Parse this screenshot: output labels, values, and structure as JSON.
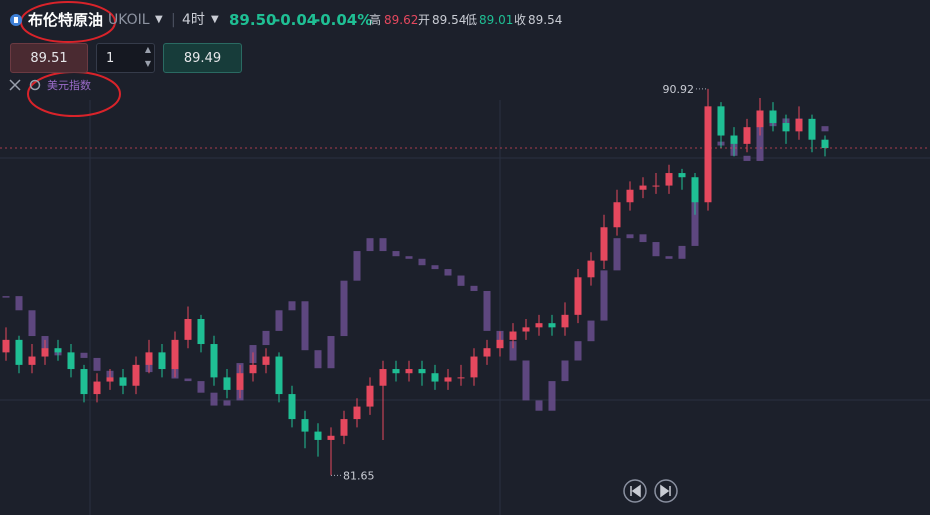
{
  "header": {
    "title": "布伦特原油",
    "symbol": "UKOIL",
    "period": "4时",
    "price": "89.50",
    "change": "-0.04",
    "change_pct": "-0.04%",
    "high_label": "高",
    "high": "89.62",
    "open_label": "开",
    "open": "89.54",
    "low_label": "低",
    "low": "89.01",
    "close_label": "收",
    "close": "89.54"
  },
  "order": {
    "sell": "89.51",
    "quantity": "1",
    "buy": "89.49"
  },
  "chart_data": {
    "type": "candlestick",
    "color_up": "#e5485e",
    "color_down": "#1fbf94",
    "ylim": [
      80.7,
      93.05
    ],
    "open": [
      84.6,
      84.9,
      84.3,
      84.5,
      84.7,
      84.6,
      84.2,
      83.6,
      83.9,
      84.0,
      83.8,
      84.3,
      84.6,
      84.2,
      84.9,
      85.4,
      84.8,
      84.0,
      83.7,
      84.1,
      84.3,
      84.5,
      83.6,
      83.0,
      82.7,
      82.5,
      82.6,
      83.0,
      83.3,
      83.8,
      84.2,
      84.1,
      84.2,
      84.1,
      83.9,
      84.0,
      84.0,
      84.5,
      84.7,
      84.9,
      85.1,
      85.2,
      85.3,
      85.2,
      85.5,
      86.4,
      86.8,
      87.6,
      88.2,
      88.5,
      88.6,
      88.6,
      88.9,
      88.8,
      88.2,
      90.5,
      89.8,
      89.6,
      90.0,
      90.4,
      90.1,
      89.9,
      90.2,
      89.7
    ],
    "high": [
      85.2,
      85.0,
      84.8,
      84.9,
      84.9,
      84.8,
      84.3,
      84.1,
      84.2,
      84.2,
      84.5,
      84.9,
      84.8,
      85.1,
      85.7,
      85.5,
      85.0,
      84.2,
      84.3,
      84.6,
      84.7,
      84.6,
      83.8,
      83.2,
      82.9,
      82.8,
      83.2,
      83.5,
      84.0,
      84.4,
      84.4,
      84.4,
      84.4,
      84.3,
      84.2,
      84.3,
      84.7,
      84.9,
      85.1,
      85.3,
      85.4,
      85.5,
      85.5,
      85.8,
      86.6,
      87.0,
      87.9,
      88.5,
      88.7,
      88.8,
      88.9,
      89.1,
      89.0,
      88.9,
      90.92,
      90.6,
      90.0,
      90.2,
      90.7,
      90.6,
      90.3,
      90.5,
      90.3,
      89.8
    ],
    "low": [
      84.4,
      84.1,
      84.1,
      84.3,
      84.4,
      84.0,
      83.4,
      83.4,
      83.7,
      83.6,
      83.6,
      84.1,
      84.0,
      84.0,
      84.7,
      84.6,
      83.8,
      83.5,
      83.5,
      83.9,
      84.1,
      83.4,
      82.8,
      82.3,
      82.1,
      81.65,
      82.4,
      82.8,
      83.1,
      82.5,
      83.9,
      83.9,
      83.8,
      83.7,
      83.7,
      83.8,
      83.8,
      84.3,
      84.5,
      84.7,
      84.9,
      85.0,
      85.0,
      85.0,
      85.3,
      86.2,
      86.6,
      87.4,
      88.0,
      88.3,
      88.4,
      88.4,
      88.5,
      87.9,
      88.0,
      89.5,
      89.3,
      89.4,
      89.8,
      89.9,
      89.6,
      89.7,
      89.4,
      89.3
    ],
    "close": [
      84.9,
      84.3,
      84.5,
      84.7,
      84.6,
      84.2,
      83.6,
      83.9,
      84.0,
      83.8,
      84.3,
      84.6,
      84.2,
      84.9,
      85.4,
      84.8,
      84.0,
      83.7,
      84.1,
      84.3,
      84.5,
      83.6,
      83.0,
      82.7,
      82.5,
      82.6,
      83.0,
      83.3,
      83.8,
      84.2,
      84.1,
      84.2,
      84.1,
      83.9,
      84.0,
      84.0,
      84.5,
      84.7,
      84.9,
      85.1,
      85.2,
      85.3,
      85.2,
      85.5,
      86.4,
      86.8,
      87.6,
      88.2,
      88.5,
      88.6,
      88.6,
      88.9,
      88.8,
      88.2,
      90.5,
      89.8,
      89.6,
      90.0,
      90.4,
      90.1,
      89.9,
      90.2,
      89.7,
      89.5
    ],
    "overlay": {
      "name": "美元指数",
      "color": "#6a4f8e",
      "y2lim": [
        102.7,
        106.7
      ],
      "values": [
        104.4,
        104.29,
        104.09,
        103.98,
        103.94,
        103.96,
        103.92,
        103.82,
        103.74,
        103.71,
        103.81,
        103.88,
        103.84,
        103.76,
        103.74,
        103.65,
        103.55,
        103.59,
        103.88,
        104.02,
        104.13,
        104.29,
        104.36,
        103.98,
        103.84,
        104.09,
        104.52,
        104.75,
        104.85,
        104.75,
        104.71,
        104.69,
        104.64,
        104.61,
        104.56,
        104.48,
        104.44,
        104.13,
        104.05,
        103.9,
        103.59,
        103.51,
        103.74,
        103.9,
        104.05,
        104.21,
        104.6,
        104.85,
        104.88,
        104.82,
        104.71,
        104.69,
        104.79,
        105.18,
        105.57,
        105.6,
        105.49,
        105.45,
        105.82,
        105.72,
        105.78,
        105.74,
        105.72,
        105.68
      ]
    }
  }
}
